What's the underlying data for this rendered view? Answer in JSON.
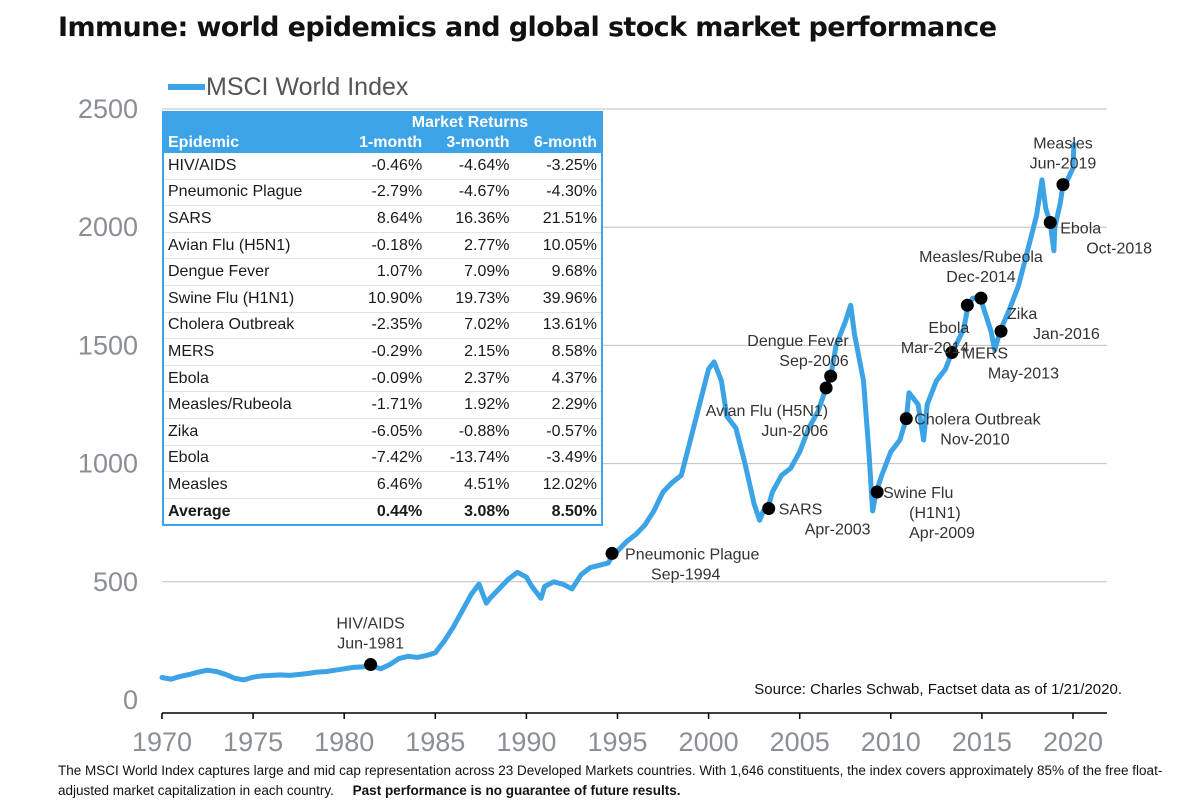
{
  "title": "Immune: world epidemics and global stock market performance",
  "footnote": {
    "text": "The MSCI World Index captures large and mid cap representation across 23 Developed Markets countries. With 1,646 constituents, the index covers approximately 85% of the free float-adjusted market capitalization in each country.",
    "disclaimer": "Past performance is no guarantee of future results."
  },
  "colors": {
    "series": "#3ba3e6",
    "grid": "#bfbfbf",
    "marker": "#000000",
    "tick": "#8a8f96"
  },
  "returns_table": {
    "group_header": "Market Returns",
    "columns": [
      "Epidemic",
      "1-month",
      "3-month",
      "6-month"
    ],
    "rows": [
      [
        "HIV/AIDS",
        "-0.46%",
        "-4.64%",
        "-3.25%"
      ],
      [
        "Pneumonic Plague",
        "-2.79%",
        "-4.67%",
        "-4.30%"
      ],
      [
        "SARS",
        "8.64%",
        "16.36%",
        "21.51%"
      ],
      [
        "Avian Flu (H5N1)",
        "-0.18%",
        "2.77%",
        "10.05%"
      ],
      [
        "Dengue Fever",
        "1.07%",
        "7.09%",
        "9.68%"
      ],
      [
        "Swine Flu (H1N1)",
        "10.90%",
        "19.73%",
        "39.96%"
      ],
      [
        "Cholera Outbreak",
        "-2.35%",
        "7.02%",
        "13.61%"
      ],
      [
        "MERS",
        "-0.29%",
        "2.15%",
        "8.58%"
      ],
      [
        "Ebola",
        "-0.09%",
        "2.37%",
        "4.37%"
      ],
      [
        "Measles/Rubeola",
        "-1.71%",
        "1.92%",
        "2.29%"
      ],
      [
        "Zika",
        "-6.05%",
        "-0.88%",
        "-0.57%"
      ],
      [
        "Ebola",
        "-7.42%",
        "-13.74%",
        "-3.49%"
      ],
      [
        "Measles",
        "6.46%",
        "4.51%",
        "12.02%"
      ]
    ],
    "average": [
      "Average",
      "0.44%",
      "3.08%",
      "8.50%"
    ]
  },
  "chart_data": {
    "type": "line",
    "title": "Immune: world epidemics and global stock market performance",
    "xlabel": "",
    "ylabel": "",
    "xlim": [
      1970,
      2020.5
    ],
    "ylim": [
      0,
      2500
    ],
    "xticks": [
      1970,
      1975,
      1980,
      1985,
      1990,
      1995,
      2000,
      2005,
      2010,
      2015,
      2020
    ],
    "yticks": [
      0,
      500,
      1000,
      1500,
      2000,
      2500
    ],
    "grid": true,
    "legend": "top-left",
    "source": "Source: Charles Schwab, Factset data as of 1/21/2020.",
    "series": [
      {
        "name": "MSCI World Index",
        "x": [
          1970,
          1970.5,
          1971,
          1971.5,
          1972,
          1972.5,
          1973,
          1973.5,
          1974,
          1974.5,
          1975,
          1975.5,
          1976,
          1976.5,
          1977,
          1977.5,
          1978,
          1978.5,
          1979,
          1979.5,
          1980,
          1980.5,
          1981,
          1981.5,
          1982,
          1982.5,
          1983,
          1983.5,
          1984,
          1984.5,
          1985,
          1985.5,
          1986,
          1986.5,
          1987,
          1987.4,
          1987.8,
          1988,
          1988.5,
          1989,
          1989.5,
          1990,
          1990.3,
          1990.8,
          1991,
          1991.5,
          1992,
          1992.5,
          1993,
          1993.5,
          1994,
          1994.5,
          1994.75,
          1995,
          1995.5,
          1996,
          1996.5,
          1997,
          1997.5,
          1998,
          1998.5,
          1999,
          1999.5,
          2000,
          2000.3,
          2000.7,
          2001,
          2001.5,
          2002,
          2002.5,
          2002.8,
          2003,
          2003.25,
          2003.5,
          2004,
          2004.5,
          2005,
          2005.5,
          2006,
          2006.45,
          2006.7,
          2007,
          2007.5,
          2007.8,
          2008,
          2008.5,
          2008.8,
          2009,
          2009.2,
          2009.5,
          2010,
          2010.5,
          2010.85,
          2011,
          2011.5,
          2011.8,
          2012,
          2012.5,
          2013,
          2013.35,
          2013.5,
          2014,
          2014.25,
          2014.5,
          2014.95,
          2015,
          2015.5,
          2015.7,
          2016,
          2016.5,
          2017,
          2017.5,
          2018,
          2018.3,
          2018.5,
          2018.75,
          2018.95,
          2019,
          2019.3,
          2019.45,
          2019.7,
          2020,
          2020.05
        ],
        "values": [
          95,
          88,
          100,
          108,
          118,
          126,
          120,
          108,
          92,
          85,
          97,
          102,
          104,
          106,
          104,
          108,
          112,
          118,
          120,
          126,
          132,
          138,
          140,
          145,
          132,
          150,
          175,
          185,
          180,
          188,
          200,
          250,
          310,
          380,
          450,
          490,
          410,
          430,
          470,
          510,
          540,
          520,
          480,
          430,
          480,
          500,
          490,
          470,
          530,
          560,
          570,
          580,
          615,
          630,
          670,
          700,
          740,
          800,
          880,
          920,
          950,
          1100,
          1250,
          1400,
          1430,
          1350,
          1200,
          1150,
          1000,
          830,
          760,
          800,
          810,
          880,
          950,
          980,
          1050,
          1150,
          1220,
          1320,
          1370,
          1500,
          1600,
          1670,
          1550,
          1350,
          1050,
          800,
          880,
          950,
          1050,
          1100,
          1190,
          1300,
          1250,
          1100,
          1250,
          1350,
          1400,
          1470,
          1490,
          1570,
          1670,
          1700,
          1700,
          1680,
          1560,
          1480,
          1560,
          1650,
          1750,
          1900,
          2050,
          2200,
          2080,
          2020,
          1900,
          2000,
          2100,
          2180,
          2200,
          2250,
          2350
        ]
      }
    ],
    "annotations": [
      {
        "label": [
          "HIV/AIDS",
          "Jun-1981"
        ],
        "x": 1981.45,
        "y": 150,
        "label_pos": "above"
      },
      {
        "label": [
          "Pneumonic Plague",
          "Sep-1994"
        ],
        "x": 1994.7,
        "y": 620,
        "label_pos": "right-below"
      },
      {
        "label": [
          "SARS",
          "Apr-2003"
        ],
        "x": 2003.3,
        "y": 810,
        "label_pos": "right"
      },
      {
        "label": [
          "Avian Flu (H5N1)",
          "Jun-2006"
        ],
        "x": 2006.45,
        "y": 1320,
        "label_pos": "left-below"
      },
      {
        "label": [
          "Dengue Fever",
          "Sep-2006"
        ],
        "x": 2006.7,
        "y": 1370,
        "label_pos": "left-above"
      },
      {
        "label": [
          "Swine Flu",
          "(H1N1)",
          "Apr-2009"
        ],
        "x": 2009.25,
        "y": 880,
        "label_pos": "right"
      },
      {
        "label": [
          "Cholera Outbreak",
          "Nov-2010"
        ],
        "x": 2010.85,
        "y": 1190,
        "label_pos": "right"
      },
      {
        "label": [
          "MERS",
          "May-2013"
        ],
        "x": 2013.35,
        "y": 1470,
        "label_pos": "right"
      },
      {
        "label": [
          "Ebola",
          "Mar-2014"
        ],
        "x": 2014.2,
        "y": 1670,
        "label_pos": "left-below"
      },
      {
        "label": [
          "Measles/Rubeola",
          "Dec-2014"
        ],
        "x": 2014.95,
        "y": 1700,
        "label_pos": "above"
      },
      {
        "label": [
          "Zika",
          "Jan-2016"
        ],
        "x": 2016.05,
        "y": 1560,
        "label_pos": "right"
      },
      {
        "label": [
          "Ebola",
          "Oct-2018"
        ],
        "x": 2018.75,
        "y": 2020,
        "label_pos": "right"
      },
      {
        "label": [
          "Measles",
          "Jun-2019"
        ],
        "x": 2019.45,
        "y": 2180,
        "label_pos": "above"
      }
    ]
  }
}
